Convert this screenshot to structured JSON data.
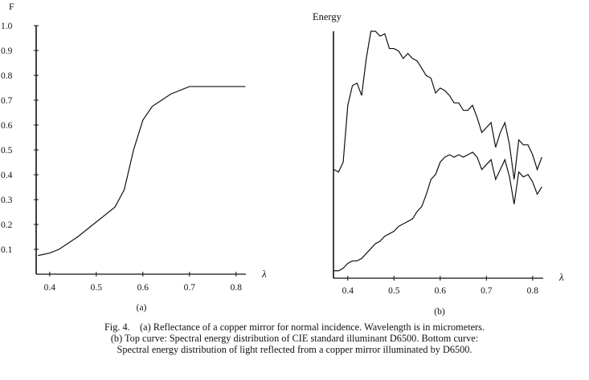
{
  "chart_data": [
    {
      "panel_label": "(a)",
      "type": "line",
      "ylabel": "F",
      "xlabel": "λ",
      "xlim": [
        0.37,
        0.82
      ],
      "ylim": [
        0,
        1.0
      ],
      "x_ticks": [
        "0.4",
        "0.5",
        "0.6",
        "0.7",
        "0.8"
      ],
      "y_ticks": [
        "0.1",
        "0.2",
        "0.3",
        "0.4",
        "0.5",
        "0.6",
        "0.7",
        "0.8",
        "0.9",
        "1.0"
      ],
      "grid": false,
      "series": [
        {
          "x": [
            0.375,
            0.4,
            0.42,
            0.46,
            0.5,
            0.54,
            0.56,
            0.58,
            0.6,
            0.62,
            0.66,
            0.7,
            0.82
          ],
          "y": [
            0.075,
            0.085,
            0.1,
            0.15,
            0.21,
            0.27,
            0.34,
            0.5,
            0.62,
            0.675,
            0.725,
            0.755,
            0.755
          ]
        }
      ]
    },
    {
      "panel_label": "(b)",
      "type": "line",
      "ylabel": "Energy",
      "xlabel": "λ",
      "xlim": [
        0.37,
        0.82
      ],
      "ylim": [
        0,
        1.0
      ],
      "x_ticks": [
        "0.4",
        "0.5",
        "0.6",
        "0.7",
        "0.8"
      ],
      "grid": false,
      "x": [
        0.37,
        0.38,
        0.39,
        0.4,
        0.41,
        0.42,
        0.43,
        0.44,
        0.45,
        0.46,
        0.47,
        0.48,
        0.49,
        0.5,
        0.51,
        0.52,
        0.53,
        0.54,
        0.55,
        0.56,
        0.57,
        0.58,
        0.59,
        0.6,
        0.61,
        0.62,
        0.63,
        0.64,
        0.65,
        0.66,
        0.67,
        0.68,
        0.69,
        0.7,
        0.71,
        0.72,
        0.73,
        0.74,
        0.75,
        0.76,
        0.77,
        0.78,
        0.79,
        0.8,
        0.81,
        0.82
      ],
      "series": [
        {
          "position": "top",
          "values": [
            0.44,
            0.43,
            0.47,
            0.7,
            0.78,
            0.79,
            0.74,
            0.89,
            1.0,
            1.0,
            0.98,
            0.99,
            0.93,
            0.93,
            0.92,
            0.89,
            0.91,
            0.89,
            0.88,
            0.85,
            0.82,
            0.81,
            0.75,
            0.77,
            0.76,
            0.74,
            0.71,
            0.71,
            0.68,
            0.68,
            0.7,
            0.65,
            0.59,
            0.61,
            0.63,
            0.53,
            0.59,
            0.63,
            0.54,
            0.4,
            0.56,
            0.54,
            0.54,
            0.5,
            0.44,
            0.49
          ]
        },
        {
          "position": "bottom",
          "values": [
            0.03,
            0.03,
            0.04,
            0.06,
            0.07,
            0.07,
            0.08,
            0.1,
            0.12,
            0.14,
            0.15,
            0.17,
            0.18,
            0.19,
            0.21,
            0.22,
            0.23,
            0.24,
            0.27,
            0.29,
            0.34,
            0.4,
            0.42,
            0.47,
            0.49,
            0.5,
            0.49,
            0.5,
            0.49,
            0.5,
            0.51,
            0.49,
            0.44,
            0.46,
            0.48,
            0.4,
            0.44,
            0.48,
            0.41,
            0.3,
            0.43,
            0.41,
            0.42,
            0.39,
            0.34,
            0.37
          ]
        }
      ]
    }
  ],
  "caption": {
    "line1": "Fig. 4.    (a) Reflectance of a copper mirror for normal incidence. Wavelength is in micrometers.",
    "line2": "(b) Top curve: Spectral energy distribution of CIE standard illuminant D6500. Bottom curve:",
    "line3": "Spectral energy distribution of light reflected from a copper mirror illuminated by D6500."
  },
  "colors": {
    "ink": "#111111",
    "background": "#ffffff"
  }
}
